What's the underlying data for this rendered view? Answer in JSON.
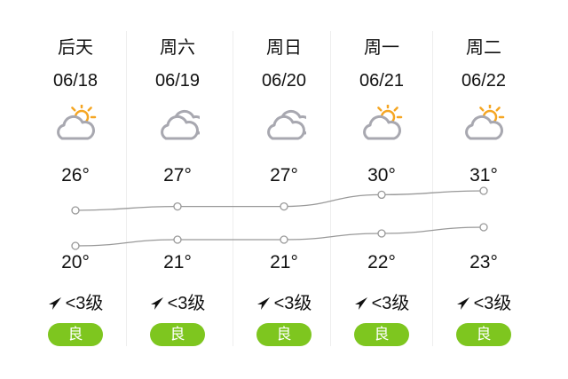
{
  "days": [
    {
      "day": "后天",
      "date": "06/18",
      "icon": "partly-sunny-icon",
      "high": "26°",
      "low": "20°",
      "wind": "<3级",
      "aqi": "良"
    },
    {
      "day": "周六",
      "date": "06/19",
      "icon": "cloudy-icon",
      "high": "27°",
      "low": "21°",
      "wind": "<3级",
      "aqi": "良"
    },
    {
      "day": "周日",
      "date": "06/20",
      "icon": "cloudy-icon",
      "high": "27°",
      "low": "21°",
      "wind": "<3级",
      "aqi": "良"
    },
    {
      "day": "周一",
      "date": "06/21",
      "icon": "partly-sunny-icon",
      "high": "30°",
      "low": "22°",
      "wind": "<3级",
      "aqi": "良"
    },
    {
      "day": "周二",
      "date": "06/22",
      "icon": "partly-sunny-icon",
      "high": "31°",
      "low": "23°",
      "wind": "<3级",
      "aqi": "良"
    }
  ],
  "highs": [
    26,
    27,
    27,
    30,
    31
  ],
  "lows": [
    20,
    21,
    21,
    22,
    23
  ],
  "colors": {
    "aqi_good": "#7ec61f",
    "line": "#999999",
    "sun": "#f5a623",
    "cloud": "#a8a8b0"
  }
}
